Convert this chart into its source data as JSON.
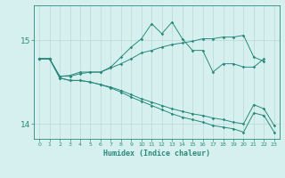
{
  "xlabel": "Humidex (Indice chaleur)",
  "background_color": "#d6f0f0",
  "line_color": "#2a8a7a",
  "grid_color": "#b8d8d8",
  "xlim": [
    -0.5,
    23.5
  ],
  "ylim": [
    13.82,
    15.42
  ],
  "yticks": [
    14,
    15
  ],
  "xticks": [
    0,
    1,
    2,
    3,
    4,
    5,
    6,
    7,
    8,
    9,
    10,
    11,
    12,
    13,
    14,
    15,
    16,
    17,
    18,
    19,
    20,
    21,
    22,
    23
  ],
  "x": [
    0,
    1,
    2,
    3,
    4,
    5,
    6,
    7,
    8,
    9,
    10,
    11,
    12,
    13,
    14,
    15,
    16,
    17,
    18,
    19,
    20,
    21,
    22,
    23
  ],
  "line1": [
    14.78,
    14.78,
    14.57,
    14.58,
    14.62,
    14.62,
    14.62,
    14.68,
    14.8,
    14.92,
    15.02,
    15.2,
    15.08,
    15.22,
    15.02,
    14.88,
    14.88,
    14.62,
    14.72,
    14.72,
    14.68,
    14.68,
    14.78,
    null
  ],
  "line2": [
    14.78,
    14.78,
    14.57,
    14.57,
    14.6,
    14.62,
    14.62,
    14.67,
    14.72,
    14.78,
    14.85,
    14.88,
    14.92,
    14.95,
    14.97,
    14.99,
    15.02,
    15.02,
    15.04,
    15.04,
    15.06,
    14.8,
    14.75,
    null
  ],
  "line3": [
    14.78,
    14.78,
    14.55,
    14.52,
    14.52,
    14.5,
    14.47,
    14.44,
    14.4,
    14.35,
    14.3,
    14.26,
    14.22,
    14.18,
    14.15,
    14.12,
    14.1,
    14.07,
    14.05,
    14.02,
    14.0,
    14.23,
    14.18,
    13.98
  ],
  "line4": [
    14.78,
    14.78,
    14.55,
    14.52,
    14.52,
    14.5,
    14.47,
    14.43,
    14.38,
    14.32,
    14.27,
    14.22,
    14.17,
    14.12,
    14.08,
    14.05,
    14.02,
    13.98,
    13.96,
    13.94,
    13.9,
    14.13,
    14.1,
    13.9
  ]
}
